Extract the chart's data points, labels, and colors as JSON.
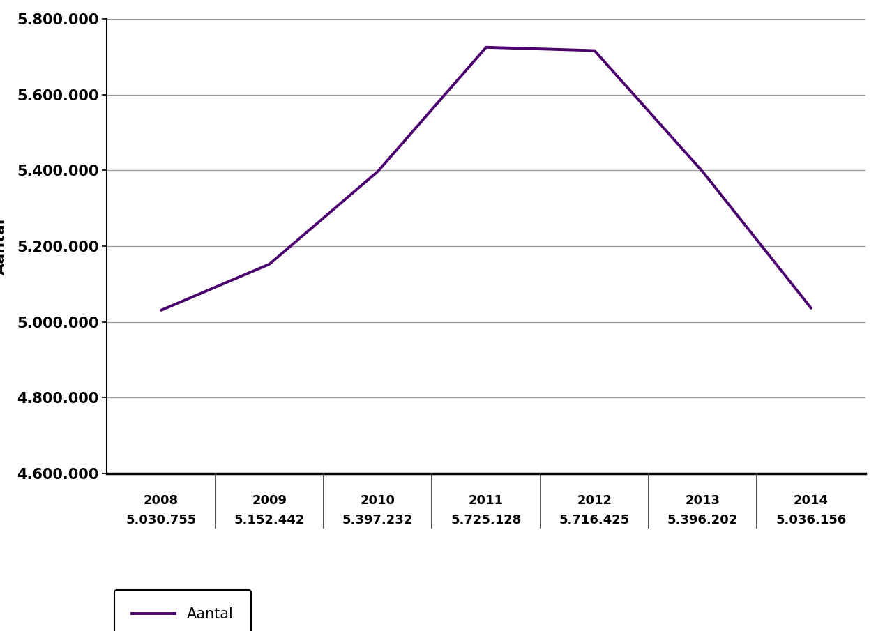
{
  "years": [
    2008,
    2009,
    2010,
    2011,
    2012,
    2013,
    2014
  ],
  "values": [
    5030755,
    5152442,
    5397232,
    5725128,
    5716425,
    5396202,
    5036156
  ],
  "year_labels": [
    "2008",
    "2009",
    "2010",
    "2011",
    "2012",
    "2013",
    "2014"
  ],
  "value_labels": [
    "5.030.755",
    "5.152.442",
    "5.397.232",
    "5.725.128",
    "5.716.425",
    "5.396.202",
    "5.036.156"
  ],
  "ylabel": "Aantal",
  "line_color": "#4B006E",
  "ylim_min": 4600000,
  "ylim_max": 5800000,
  "ytick_values": [
    4600000,
    4800000,
    5000000,
    5200000,
    5400000,
    5600000,
    5800000
  ],
  "ytick_labels": [
    "4.600.000",
    "4.800.000",
    "5.000.000",
    "5.200.000",
    "5.400.000",
    "5.600.000",
    "5.800.000"
  ],
  "legend_label": "Aantal",
  "background_color": "#ffffff",
  "grid_color": "#999999"
}
